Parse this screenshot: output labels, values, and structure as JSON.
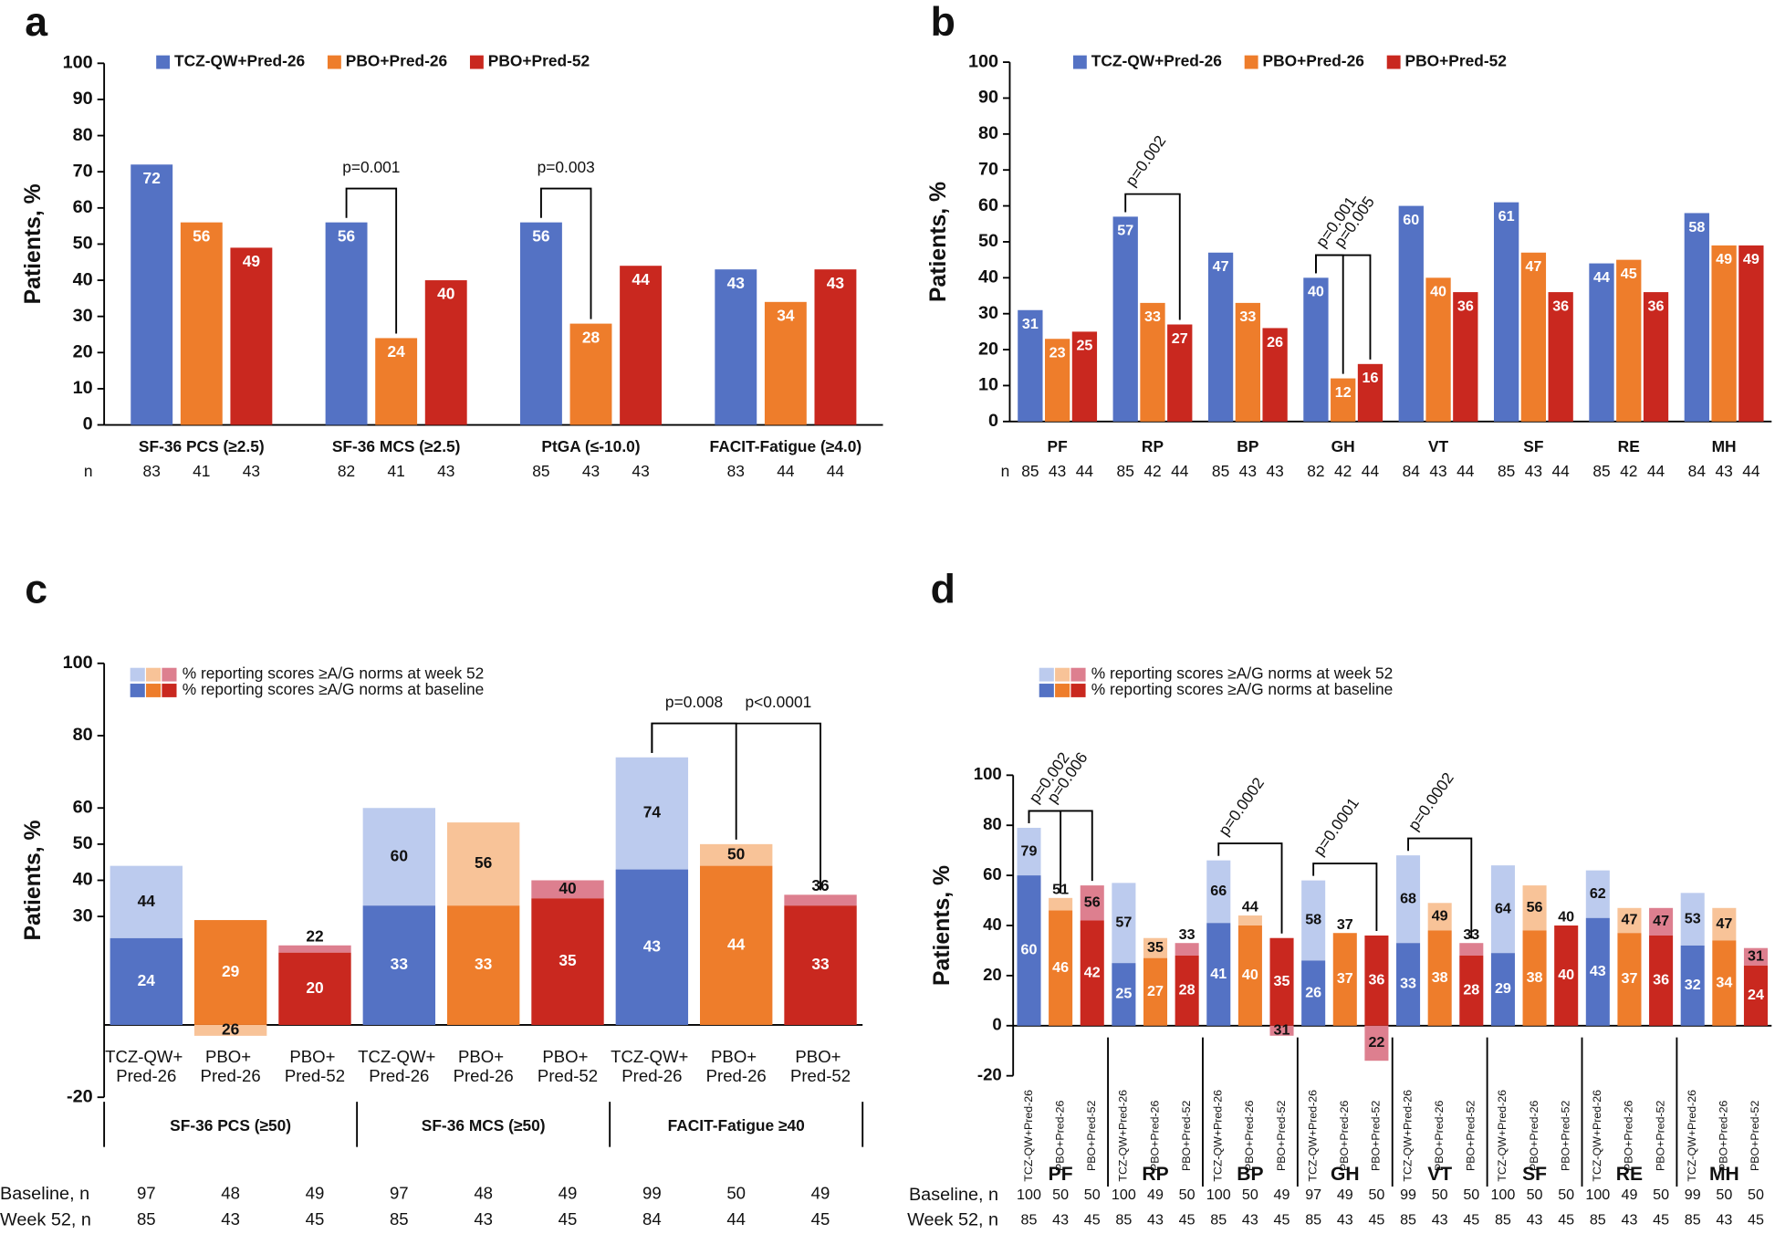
{
  "chart_data": [
    {
      "panel": "a",
      "type": "bar",
      "y_label": "Patients, %",
      "categories": [
        "SF-36 PCS (≥2.5)",
        "SF-36 MCS (≥2.5)",
        "PtGA (≤-10.0)",
        "FACIT-Fatigue (≥4.0)"
      ],
      "series": [
        {
          "name": "TCZ-QW+Pred-26",
          "color": "#5472c4",
          "values": [
            72,
            56,
            56,
            43
          ]
        },
        {
          "name": "PBO+Pred-26",
          "color": "#ee7d2b",
          "values": [
            56,
            24,
            28,
            34
          ]
        },
        {
          "name": "PBO+Pred-52",
          "color": "#c9281f",
          "values": [
            49,
            40,
            44,
            43
          ]
        }
      ],
      "ylim": [
        0,
        100
      ],
      "yticks": [
        0,
        10,
        20,
        30,
        40,
        50,
        60,
        70,
        80,
        90,
        100
      ],
      "n_label": "n",
      "n": [
        [
          83,
          41,
          43
        ],
        [
          82,
          41,
          43
        ],
        [
          85,
          43,
          43
        ],
        [
          83,
          44,
          44
        ]
      ],
      "annotations": [
        {
          "text": "p=0.001",
          "category": "SF-36 MCS (≥2.5)",
          "between": [
            "TCZ-QW+Pred-26",
            "PBO+Pred-26"
          ]
        },
        {
          "text": "p=0.003",
          "category": "PtGA (≤-10.0)",
          "between": [
            "TCZ-QW+Pred-26",
            "PBO+Pred-26"
          ]
        }
      ]
    },
    {
      "panel": "b",
      "type": "bar",
      "y_label": "Patients, %",
      "categories": [
        "PF",
        "RP",
        "BP",
        "GH",
        "VT",
        "SF",
        "RE",
        "MH"
      ],
      "series": [
        {
          "name": "TCZ-QW+Pred-26",
          "color": "#5472c4",
          "values": [
            31,
            57,
            47,
            40,
            60,
            61,
            44,
            58
          ]
        },
        {
          "name": "PBO+Pred-26",
          "color": "#ee7d2b",
          "values": [
            23,
            33,
            33,
            12,
            40,
            47,
            45,
            49
          ]
        },
        {
          "name": "PBO+Pred-52",
          "color": "#c9281f",
          "values": [
            25,
            27,
            26,
            16,
            36,
            36,
            36,
            49
          ]
        }
      ],
      "ylim": [
        0,
        100
      ],
      "yticks": [
        0,
        10,
        20,
        30,
        40,
        50,
        60,
        70,
        80,
        90,
        100
      ],
      "n_label": "n",
      "n": [
        [
          85,
          43,
          44
        ],
        [
          85,
          42,
          44
        ],
        [
          85,
          43,
          43
        ],
        [
          82,
          42,
          44
        ],
        [
          84,
          43,
          44
        ],
        [
          85,
          43,
          44
        ],
        [
          85,
          42,
          44
        ],
        [
          84,
          43,
          44
        ]
      ],
      "annotations": [
        {
          "text": "p=0.002",
          "category": "RP",
          "between": [
            "TCZ-QW+Pred-26",
            "PBO+Pred-52"
          ]
        },
        {
          "text": "p=0.001",
          "category": "GH",
          "between": [
            "TCZ-QW+Pred-26",
            "PBO+Pred-26"
          ]
        },
        {
          "text": "p=0.005",
          "category": "GH",
          "between": [
            "TCZ-QW+Pred-26",
            "PBO+Pred-52"
          ]
        }
      ]
    },
    {
      "panel": "c",
      "type": "paired",
      "y_label": "Patients, %",
      "groups": [
        "SF-36 PCS (≥50)",
        "SF-36 MCS (≥50)",
        "FACIT-Fatigue ≥40"
      ],
      "arm_labels": [
        "TCZ-QW+ Pred-26",
        "PBO+ Pred-26",
        "PBO+ Pred-52"
      ],
      "series": [
        {
          "name": "% reporting scores ≥A/G norms at week 52",
          "colors": [
            "#bccbee",
            "#f8c398",
            "#dd7f8f"
          ],
          "values": [
            44,
            26,
            22,
            60,
            56,
            40,
            74,
            50,
            36
          ]
        },
        {
          "name": "% reporting scores ≥A/G norms at baseline",
          "colors": [
            "#5472c4",
            "#ee7d2b",
            "#c9281f"
          ],
          "values": [
            24,
            29,
            20,
            33,
            33,
            35,
            43,
            44,
            33
          ]
        }
      ],
      "ylim": [
        -20,
        100
      ],
      "yticks": [
        100,
        80,
        60,
        50,
        40,
        30,
        -20
      ],
      "n_rows": [
        {
          "label": "Baseline, n",
          "values": [
            97,
            48,
            49,
            97,
            48,
            49,
            99,
            50,
            49
          ]
        },
        {
          "label": "Week 52, n",
          "values": [
            85,
            43,
            45,
            85,
            43,
            45,
            84,
            44,
            45
          ]
        }
      ],
      "annotations": [
        {
          "text": "p=0.008",
          "group": "FACIT-Fatigue ≥40",
          "between": [
            "TCZ-QW+ Pred-26",
            "PBO+ Pred-26"
          ]
        },
        {
          "text": "p<0.0001",
          "group": "FACIT-Fatigue ≥40",
          "between": [
            "TCZ-QW+ Pred-26",
            "PBO+ Pred-52"
          ]
        }
      ]
    },
    {
      "panel": "d",
      "type": "paired",
      "y_label": "Patients, %",
      "groups": [
        "PF",
        "RP",
        "BP",
        "GH",
        "VT",
        "SF",
        "RE",
        "MH"
      ],
      "arm_labels": [
        "TCZ-QW+Pred-26",
        "PBO+Pred-26",
        "PBO+Pred-52"
      ],
      "series": [
        {
          "name": "% reporting scores ≥A/G norms at week 52",
          "colors": [
            "#bccbee",
            "#f8c398",
            "#dd7f8f"
          ],
          "values": [
            79,
            51,
            56,
            57,
            35,
            33,
            66,
            44,
            31,
            58,
            37,
            22,
            68,
            49,
            33,
            64,
            56,
            40,
            62,
            47,
            47,
            53,
            47,
            31
          ]
        },
        {
          "name": "% reporting scores ≥A/G norms at baseline",
          "colors": [
            "#5472c4",
            "#ee7d2b",
            "#c9281f"
          ],
          "values": [
            60,
            46,
            42,
            25,
            27,
            28,
            41,
            40,
            35,
            26,
            37,
            36,
            33,
            38,
            28,
            29,
            38,
            40,
            43,
            37,
            36,
            32,
            34,
            24
          ]
        }
      ],
      "ylim": [
        -20,
        100
      ],
      "yticks": [
        -20,
        0,
        20,
        40,
        60,
        80,
        100
      ],
      "n_rows": [
        {
          "label": "Baseline, n",
          "values": [
            100,
            50,
            50,
            100,
            49,
            50,
            100,
            50,
            49,
            97,
            49,
            50,
            99,
            50,
            50,
            100,
            50,
            50,
            100,
            49,
            50,
            99,
            50,
            50
          ]
        },
        {
          "label": "Week 52, n",
          "values": [
            85,
            43,
            45,
            85,
            43,
            45,
            85,
            43,
            45,
            85,
            43,
            45,
            85,
            43,
            45,
            85,
            43,
            45,
            85,
            43,
            45,
            85,
            43,
            45
          ]
        }
      ],
      "annotations": [
        {
          "text": "p=0.002",
          "group": "PF",
          "between": [
            "TCZ-QW+Pred-26",
            "PBO+Pred-26"
          ]
        },
        {
          "text": "p=0.006",
          "group": "PF",
          "between": [
            "TCZ-QW+Pred-26",
            "PBO+Pred-52"
          ]
        },
        {
          "text": "p=0.0002",
          "group": "BP",
          "between": [
            "TCZ-QW+Pred-26",
            "PBO+Pred-52"
          ]
        },
        {
          "text": "p=0.0001",
          "group": "GH",
          "between": [
            "TCZ-QW+Pred-26",
            "PBO+Pred-52"
          ]
        },
        {
          "text": "p=0.0002",
          "group": "VT",
          "between": [
            "TCZ-QW+Pred-26",
            "PBO+Pred-52"
          ]
        }
      ]
    }
  ]
}
